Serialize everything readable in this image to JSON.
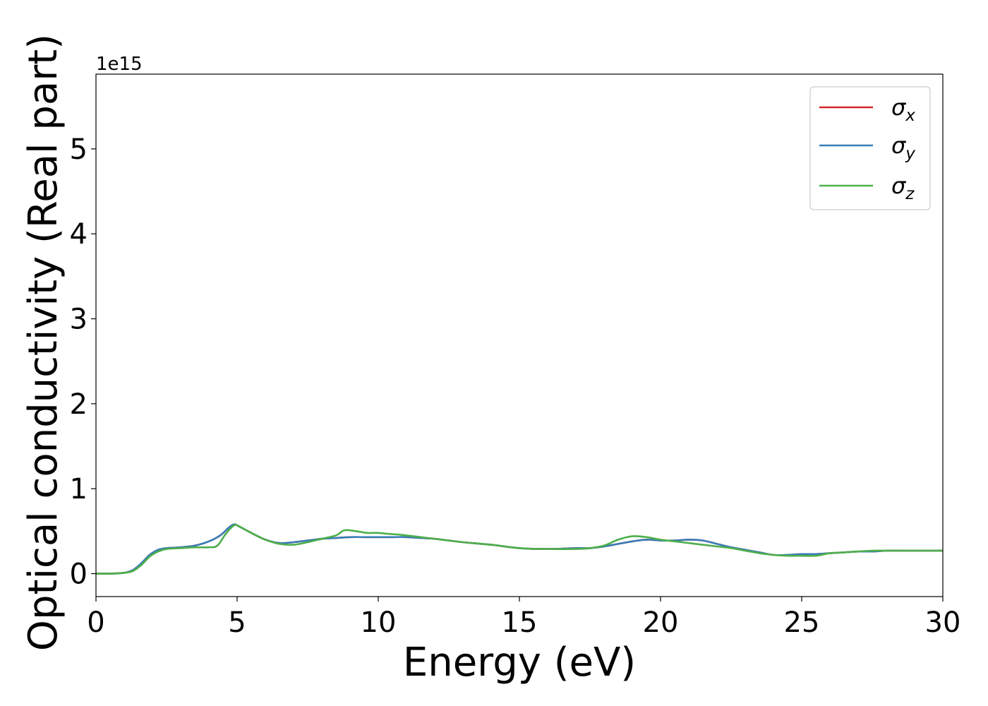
{
  "chart_data": {
    "type": "line",
    "title": "",
    "xlabel": "Energy (eV)",
    "ylabel": "Optical conductivity (Real part)",
    "y_offset_label": "1e15",
    "xlim": [
      0,
      30
    ],
    "ylim": [
      -0.27,
      5.88
    ],
    "y_scale_factor": 1000000000000000.0,
    "xticks": [
      0,
      5,
      10,
      15,
      20,
      25,
      30
    ],
    "yticks": [
      0,
      1,
      2,
      3,
      4,
      5
    ],
    "grid": false,
    "legend_position": "top-right",
    "series": [
      {
        "name": "σ_x",
        "symbol": "σ",
        "subscript": "x",
        "color": "#d62728",
        "x": [
          0,
          0.5,
          1,
          1.3,
          1.6,
          1.9,
          2.2,
          2.5,
          3,
          3.5,
          4,
          4.4,
          4.7,
          4.9,
          5.1,
          5.5,
          6,
          6.5,
          7,
          7.5,
          8,
          8.5,
          9,
          9.5,
          10,
          10.5,
          11,
          11.5,
          12,
          12.5,
          13,
          14,
          15,
          16,
          17,
          17.5,
          18,
          18.5,
          19,
          19.5,
          20,
          20.5,
          21,
          21.5,
          22,
          22.5,
          23,
          23.5,
          24,
          24.5,
          25,
          25.5,
          26,
          26.5,
          27,
          27.5,
          28,
          28.5,
          29,
          29.5,
          30
        ],
        "values": [
          0.0,
          0.0,
          0.01,
          0.04,
          0.12,
          0.22,
          0.28,
          0.3,
          0.31,
          0.33,
          0.38,
          0.45,
          0.54,
          0.58,
          0.55,
          0.48,
          0.4,
          0.36,
          0.37,
          0.39,
          0.41,
          0.42,
          0.43,
          0.43,
          0.43,
          0.43,
          0.43,
          0.42,
          0.41,
          0.39,
          0.37,
          0.34,
          0.3,
          0.29,
          0.3,
          0.3,
          0.32,
          0.35,
          0.38,
          0.4,
          0.39,
          0.39,
          0.4,
          0.39,
          0.35,
          0.31,
          0.28,
          0.25,
          0.22,
          0.22,
          0.23,
          0.23,
          0.24,
          0.25,
          0.26,
          0.26,
          0.27,
          0.27,
          0.27,
          0.27,
          0.27
        ]
      },
      {
        "name": "σ_y",
        "symbol": "σ",
        "subscript": "y",
        "color": "#377eb8",
        "x": [
          0,
          0.5,
          1,
          1.3,
          1.6,
          1.9,
          2.2,
          2.5,
          3,
          3.5,
          4,
          4.4,
          4.7,
          4.9,
          5.1,
          5.5,
          6,
          6.5,
          7,
          7.5,
          8,
          8.5,
          9,
          9.5,
          10,
          10.5,
          11,
          11.5,
          12,
          12.5,
          13,
          14,
          15,
          16,
          17,
          17.5,
          18,
          18.5,
          19,
          19.5,
          20,
          20.5,
          21,
          21.5,
          22,
          22.5,
          23,
          23.5,
          24,
          24.5,
          25,
          25.5,
          26,
          26.5,
          27,
          27.5,
          28,
          28.5,
          29,
          29.5,
          30
        ],
        "values": [
          0.0,
          0.0,
          0.01,
          0.04,
          0.12,
          0.22,
          0.28,
          0.3,
          0.31,
          0.33,
          0.38,
          0.45,
          0.54,
          0.58,
          0.55,
          0.48,
          0.4,
          0.36,
          0.37,
          0.39,
          0.41,
          0.42,
          0.43,
          0.43,
          0.43,
          0.43,
          0.43,
          0.42,
          0.41,
          0.39,
          0.37,
          0.34,
          0.3,
          0.29,
          0.3,
          0.3,
          0.32,
          0.35,
          0.38,
          0.4,
          0.39,
          0.39,
          0.4,
          0.39,
          0.35,
          0.31,
          0.28,
          0.25,
          0.22,
          0.22,
          0.23,
          0.23,
          0.24,
          0.25,
          0.26,
          0.26,
          0.27,
          0.27,
          0.27,
          0.27,
          0.27
        ]
      },
      {
        "name": "σ_z",
        "symbol": "σ",
        "subscript": "z",
        "color": "#4daf4a",
        "x": [
          0,
          0.5,
          1,
          1.3,
          1.6,
          1.9,
          2.2,
          2.5,
          3,
          3.5,
          4,
          4.3,
          4.6,
          4.9,
          5.1,
          5.5,
          6,
          6.5,
          7,
          7.5,
          8,
          8.5,
          8.8,
          9.2,
          9.6,
          10,
          10.3,
          10.7,
          11,
          11.5,
          12,
          12.5,
          13,
          14,
          15,
          16,
          17,
          17.5,
          18,
          18.5,
          19,
          19.5,
          20,
          20.5,
          21,
          21.5,
          22,
          22.5,
          23,
          23.5,
          24,
          24.5,
          25,
          25.5,
          26,
          26.5,
          27,
          27.5,
          28,
          28.5,
          29,
          29.5,
          30
        ],
        "values": [
          0.0,
          0.0,
          0.01,
          0.03,
          0.1,
          0.2,
          0.26,
          0.29,
          0.3,
          0.31,
          0.31,
          0.33,
          0.47,
          0.57,
          0.55,
          0.48,
          0.4,
          0.35,
          0.34,
          0.37,
          0.41,
          0.45,
          0.51,
          0.5,
          0.48,
          0.48,
          0.47,
          0.46,
          0.45,
          0.43,
          0.41,
          0.39,
          0.37,
          0.34,
          0.3,
          0.29,
          0.29,
          0.3,
          0.33,
          0.4,
          0.44,
          0.43,
          0.4,
          0.38,
          0.36,
          0.34,
          0.32,
          0.3,
          0.27,
          0.24,
          0.22,
          0.21,
          0.21,
          0.21,
          0.24,
          0.25,
          0.26,
          0.27,
          0.27,
          0.27,
          0.27,
          0.27,
          0.27
        ]
      }
    ]
  }
}
